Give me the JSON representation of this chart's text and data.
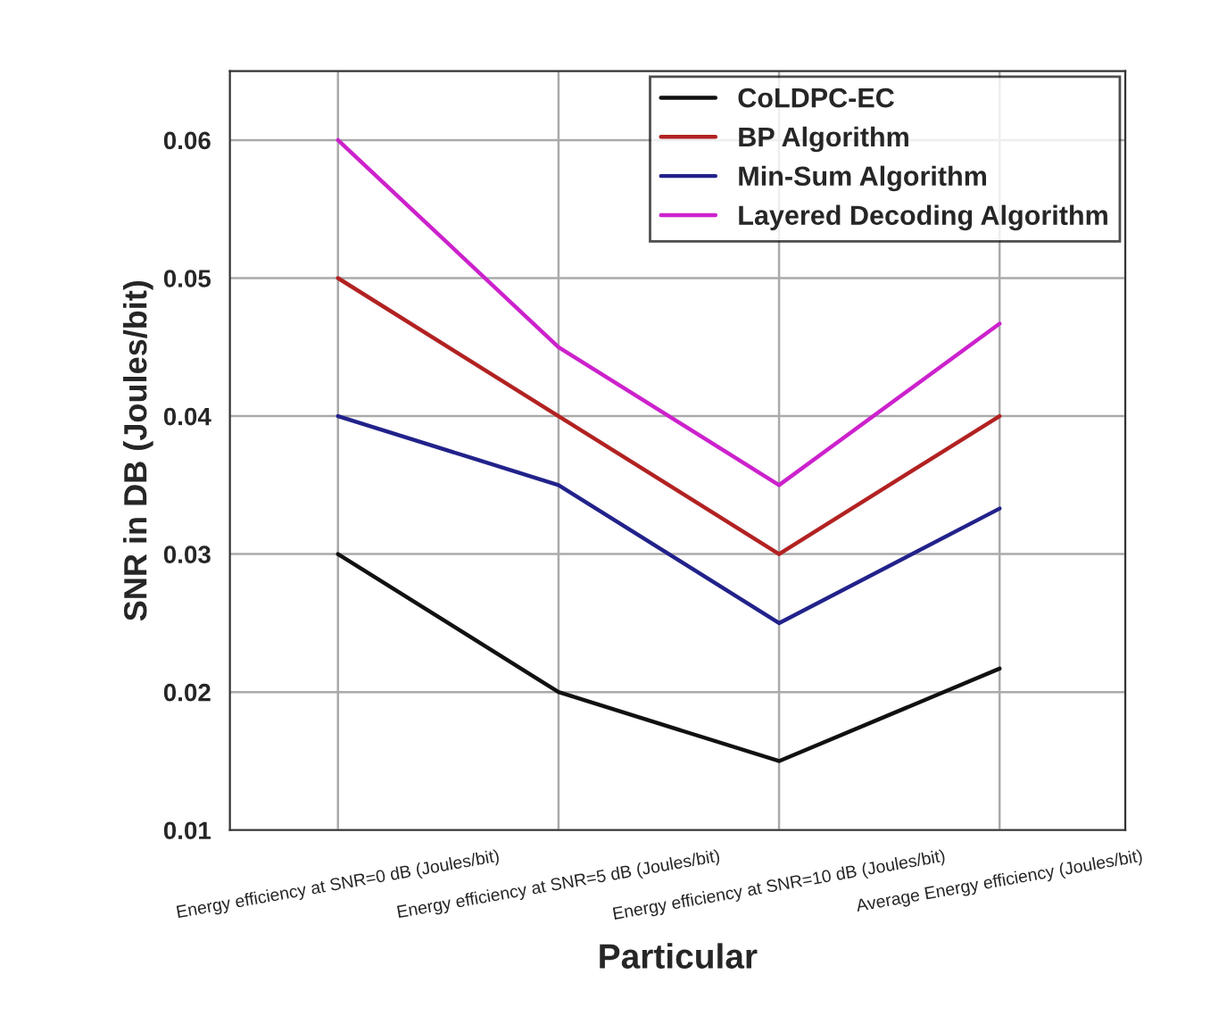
{
  "chart_data": {
    "type": "line",
    "xlabel": "Particular",
    "ylabel": "SNR in DB (Joules/bit)",
    "categories": [
      "Energy efficiency at SNR=0 dB (Joules/bit)",
      "Energy efficiency at SNR=5 dB (Joules/bit)",
      "Energy efficiency at SNR=10 dB (Joules/bit)",
      "Average Energy efficiency (Joules/bit)"
    ],
    "series": [
      {
        "name": "CoLDPC-EC",
        "color": "#111111",
        "values": [
          0.03,
          0.02,
          0.015,
          0.0217
        ]
      },
      {
        "name": "BP Algorithm",
        "color": "#b22222",
        "values": [
          0.05,
          0.04,
          0.03,
          0.04
        ]
      },
      {
        "name": "Min-Sum Algorithm",
        "color": "#22228b",
        "values": [
          0.04,
          0.035,
          0.025,
          0.0333
        ]
      },
      {
        "name": "Layered Decoding Algorithm",
        "color": "#cc22cc",
        "values": [
          0.06,
          0.045,
          0.035,
          0.0467
        ]
      }
    ],
    "ylim": [
      0.01,
      0.065
    ],
    "yticks": [
      0.01,
      0.02,
      0.03,
      0.04,
      0.05,
      0.06
    ],
    "grid": true,
    "legend": "top right",
    "marker": "none",
    "line_style": "solid"
  }
}
